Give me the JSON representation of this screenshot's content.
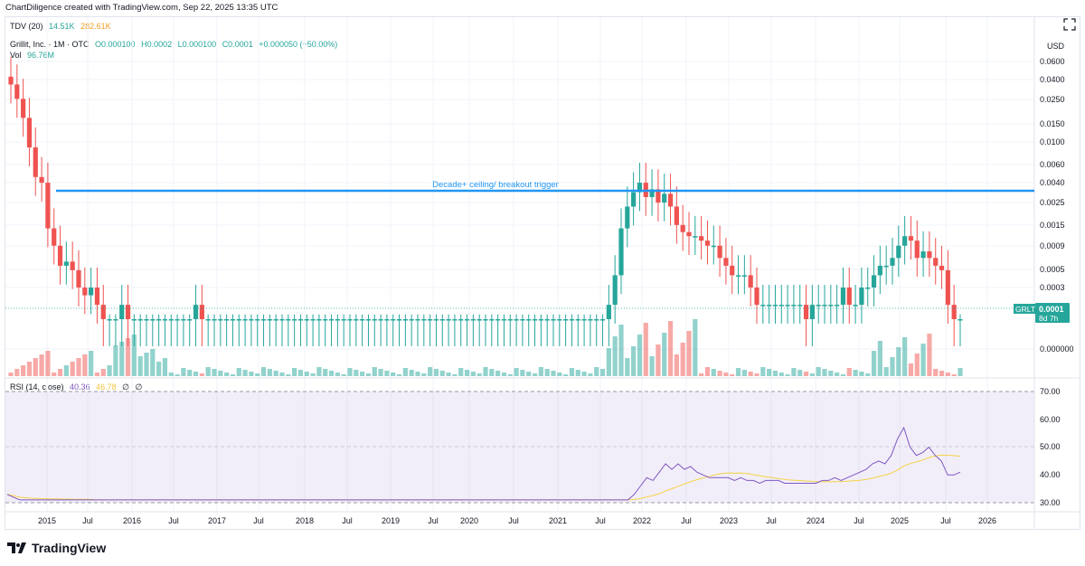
{
  "header": {
    "text": "ChartDiligence created with TradingView.com, Sep 22, 2025 13:35 UTC"
  },
  "tdv": {
    "label": "TDV (20)",
    "v1": "14.51K",
    "v2": "282.61K"
  },
  "symbol": {
    "name": "Grillit, Inc. · 1M · OTC",
    "o": "O0.000100",
    "h": "H0.0002",
    "l": "L0.000100",
    "c": "C0.0001",
    "change": "+0.000050 (+50.00%)"
  },
  "vol": {
    "label": "Vol",
    "value": "96.76M"
  },
  "currency": "USD",
  "price_labels": [
    "0.0600",
    "0.0400",
    "0.0250",
    "0.0150",
    "0.0100",
    "0.0060",
    "0.0040",
    "0.0025",
    "0.0015",
    "0.0009",
    "0.0005",
    "0.0003",
    "0.000000"
  ],
  "price_badge": {
    "ticker": "GRLT",
    "price": "0.0001",
    "countdown": "8d 7h"
  },
  "annotation": "Decade+ ceiling/ breakout trigger",
  "rsi": {
    "label": "RSI (14, close)",
    "v1": "40.36",
    "v2": "46.78",
    "v3": "∅",
    "v4": "∅",
    "levels": [
      "70.00",
      "60.00",
      "50.00",
      "40.00",
      "30.00"
    ]
  },
  "x_axis": [
    "2015",
    "Jul",
    "2016",
    "Jul",
    "2017",
    "Jul",
    "2018",
    "Jul",
    "2019",
    "Jul",
    "2020",
    "Jul",
    "2021",
    "Jul",
    "2022",
    "Jul",
    "2023",
    "Jul",
    "2024",
    "Jul",
    "2025",
    "Jul",
    "2026"
  ],
  "footer": {
    "brand": "TradingView"
  },
  "colors": {
    "up": "#26a69a",
    "down": "#ef5350",
    "line": "#2962ff",
    "rsi": "#7e57c2",
    "rsi_ma": "#f5d246",
    "rsi_bg": "#7e57c2"
  },
  "chart_data": {
    "type": "candlestick",
    "series_close": [
      0.035,
      0.025,
      0.016,
      0.008,
      0.004,
      0.0035,
      0.0012,
      0.0008,
      0.0005,
      0.00055,
      0.00045,
      0.0003,
      0.00025,
      0.0003,
      0.0002,
      0.0001,
      0.0001,
      0.0001,
      0.0002,
      0.0001,
      0.0001,
      0.0001,
      0.0001,
      0.0001,
      0.0001,
      0.0001,
      0.0001,
      0.0001,
      0.0001,
      0.0001,
      0.0002,
      0.0001,
      0.0001,
      0.0001,
      0.0001,
      0.0001,
      0.0001,
      0.0001,
      0.0001,
      0.0001,
      0.0001,
      0.0001,
      0.0001,
      0.0001,
      0.0001,
      0.0001,
      0.0001,
      0.0001,
      0.0001,
      0.0001,
      0.0001,
      0.0001,
      0.0001,
      0.0001,
      0.0001,
      0.0001,
      0.0001,
      0.0001,
      0.0001,
      0.0001,
      0.0001,
      0.0001,
      0.0001,
      0.0001,
      0.0001,
      0.0001,
      0.0001,
      0.0001,
      0.0001,
      0.0001,
      0.0001,
      0.0001,
      0.0001,
      0.0001,
      0.0001,
      0.0001,
      0.0001,
      0.0001,
      0.0001,
      0.0001,
      0.0001,
      0.0001,
      0.0001,
      0.0001,
      0.0001,
      0.0001,
      0.0001,
      0.0001,
      0.0001,
      0.0001,
      0.0001,
      0.0001,
      0.0001,
      0.0001,
      0.0001,
      0.0001,
      0.0001,
      0.0002,
      0.0004,
      0.0012,
      0.002,
      0.0028,
      0.0035,
      0.0025,
      0.003,
      0.0022,
      0.0027,
      0.002,
      0.0013,
      0.0011,
      0.001,
      0.001,
      0.0009,
      0.0008,
      0.0008,
      0.0006,
      0.0005,
      0.0004,
      0.0004,
      0.0004,
      0.0003,
      0.0002,
      0.0002,
      0.0002,
      0.0002,
      0.0002,
      0.0002,
      0.0002,
      0.0002,
      0.0001,
      0.0002,
      0.0002,
      0.0002,
      0.0002,
      0.0002,
      0.0003,
      0.0002,
      0.0002,
      0.0003,
      0.0003,
      0.0004,
      0.0005,
      0.0005,
      0.0006,
      0.0008,
      0.001,
      0.0009,
      0.0006,
      0.0007,
      0.0006,
      0.0005,
      0.00045,
      0.0002,
      0.0001,
      0.0001
    ],
    "rsi": [
      33,
      32,
      31,
      31,
      31,
      31,
      31,
      31,
      31,
      31,
      31,
      31,
      31,
      31,
      31,
      31,
      31,
      31,
      31,
      31,
      31,
      31,
      31,
      31,
      31,
      31,
      31,
      31,
      31,
      31,
      31,
      31,
      31,
      31,
      31,
      31,
      31,
      31,
      31,
      31,
      31,
      31,
      31,
      31,
      31,
      31,
      31,
      31,
      31,
      31,
      31,
      31,
      31,
      31,
      31,
      31,
      31,
      31,
      31,
      31,
      31,
      31,
      31,
      31,
      31,
      31,
      31,
      31,
      31,
      31,
      31,
      31,
      31,
      31,
      31,
      31,
      31,
      31,
      31,
      31,
      31,
      31,
      31,
      31,
      31,
      31,
      31,
      31,
      31,
      31,
      31,
      31,
      31,
      31,
      31,
      31,
      31,
      31,
      31,
      31,
      33,
      36,
      39,
      38,
      41,
      44,
      42,
      44,
      42,
      43,
      41,
      40,
      39,
      39,
      39,
      39,
      38,
      39,
      38,
      38,
      37,
      38,
      38,
      38,
      37,
      37,
      37,
      37,
      37,
      37,
      38,
      38,
      39,
      38,
      39,
      40,
      41,
      42,
      44,
      45,
      44,
      47,
      53,
      57,
      50,
      47,
      48,
      50,
      47,
      45,
      40,
      40,
      41
    ]
  }
}
